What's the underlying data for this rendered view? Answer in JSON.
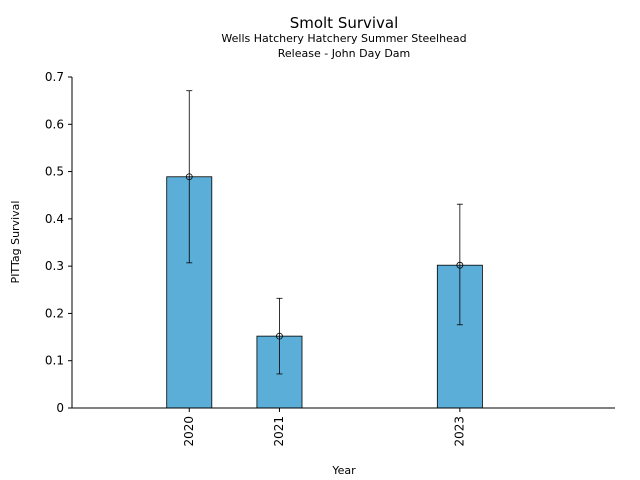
{
  "chart_data": {
    "type": "bar",
    "title": "Smolt Survival",
    "subtitle": [
      "Wells Hatchery Hatchery Summer Steelhead",
      "Release - John Day Dam"
    ],
    "xlabel": "Year",
    "ylabel": "PITTag Survival",
    "x_range": [
      2018.7,
      2024.72
    ],
    "ylim": [
      0,
      0.7
    ],
    "y_ticks": [
      0,
      0.1,
      0.2,
      0.3,
      0.4,
      0.5,
      0.6,
      0.7
    ],
    "y_tick_labels": [
      "0",
      "0.1",
      "0.2",
      "0.3",
      "0.4",
      "0.5",
      "0.6",
      "0.7"
    ],
    "bar_width": 0.5,
    "grid": false,
    "legend": "none",
    "colors": {
      "bar_fill": "#5BAED7",
      "bar_edge": "#000000",
      "error_bar": "#000000"
    },
    "data": [
      {
        "year": 2020,
        "label": "2020",
        "value": 0.489,
        "lower": 0.307,
        "upper": 0.671
      },
      {
        "year": 2021,
        "label": "2021",
        "value": 0.152,
        "lower": 0.072,
        "upper": 0.232
      },
      {
        "year": 2023,
        "label": "2023",
        "value": 0.302,
        "lower": 0.176,
        "upper": 0.431
      }
    ]
  }
}
